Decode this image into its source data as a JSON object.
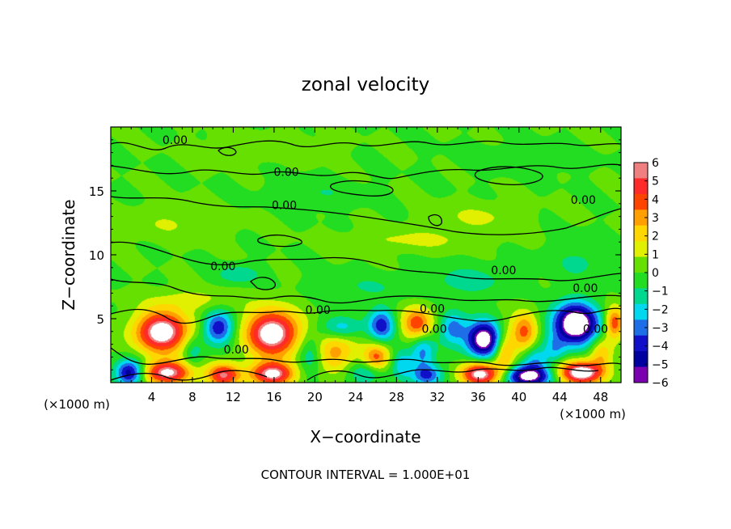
{
  "chart_data": {
    "type": "heatmap",
    "title": "zonal velocity",
    "xlabel": "X−coordinate",
    "ylabel": "Z−coordinate",
    "x_unit_left": "(×1000 m)",
    "x_unit_right": "(×1000 m)",
    "footer": "CONTOUR INTERVAL = 1.000E+01",
    "xlim": [
      0,
      50
    ],
    "ylim": [
      0,
      20
    ],
    "x_ticks": [
      4,
      8,
      12,
      16,
      20,
      24,
      28,
      32,
      36,
      40,
      44,
      48
    ],
    "x_tick_labels": [
      "4",
      "8",
      "12",
      "16",
      "20",
      "24",
      "28",
      "32",
      "36",
      "40",
      "44",
      "48"
    ],
    "y_ticks": [
      5,
      10,
      15
    ],
    "y_tick_labels": [
      "5",
      "10",
      "15"
    ],
    "contour_label": "0.00",
    "contour_label_positions": [
      {
        "x": 6.3,
        "y": 19.0
      },
      {
        "x": 17.2,
        "y": 16.5
      },
      {
        "x": 17.0,
        "y": 13.9
      },
      {
        "x": 46.3,
        "y": 14.3
      },
      {
        "x": 11.0,
        "y": 9.1
      },
      {
        "x": 38.5,
        "y": 8.8
      },
      {
        "x": 46.5,
        "y": 7.4
      },
      {
        "x": 20.3,
        "y": 5.7
      },
      {
        "x": 31.5,
        "y": 5.8
      },
      {
        "x": 31.7,
        "y": 4.2
      },
      {
        "x": 12.3,
        "y": 2.6
      },
      {
        "x": 47.5,
        "y": 4.2
      }
    ],
    "colorbar": {
      "ticks": [
        6,
        5,
        4,
        3,
        2,
        1,
        0,
        -1,
        -2,
        -3,
        -4,
        -5,
        -6
      ],
      "tick_labels": [
        "6",
        "5",
        "4",
        "3",
        "2",
        "1",
        "0",
        "−1",
        "−2",
        "−3",
        "−4",
        "−5",
        "−6"
      ],
      "colors": [
        "#f08080",
        "#ff2a2a",
        "#ff4400",
        "#ffa000",
        "#ffd700",
        "#e0f000",
        "#66e000",
        "#22dd22",
        "#00d890",
        "#00d8f0",
        "#1e6ee8",
        "#1010c8",
        "#0000a0",
        "#7a00b0"
      ]
    },
    "features": [
      {
        "x": 5.0,
        "y": 4.0,
        "value": 8,
        "sx": 2.6,
        "sy": 1.6
      },
      {
        "x": 5.5,
        "y": 0.8,
        "value": 7,
        "sx": 2.4,
        "sy": 0.9
      },
      {
        "x": 1.8,
        "y": 0.8,
        "value": -6,
        "sx": 1.4,
        "sy": 1.0
      },
      {
        "x": 10.5,
        "y": 4.3,
        "value": -5,
        "sx": 1.5,
        "sy": 1.3
      },
      {
        "x": 11.0,
        "y": 0.6,
        "value": 6,
        "sx": 1.6,
        "sy": 0.9
      },
      {
        "x": 15.8,
        "y": 3.9,
        "value": 8,
        "sx": 2.6,
        "sy": 1.8
      },
      {
        "x": 15.8,
        "y": 0.7,
        "value": 7,
        "sx": 2.2,
        "sy": 0.9
      },
      {
        "x": 19.5,
        "y": 2.2,
        "value": -2.5,
        "sx": 1.2,
        "sy": 1.5
      },
      {
        "x": 22.0,
        "y": 2.5,
        "value": 3.5,
        "sx": 2.0,
        "sy": 1.6
      },
      {
        "x": 22.5,
        "y": 4.3,
        "value": -3,
        "sx": 2.0,
        "sy": 0.9
      },
      {
        "x": 26.5,
        "y": 4.5,
        "value": -4.5,
        "sx": 1.3,
        "sy": 1.3
      },
      {
        "x": 26.0,
        "y": 2.0,
        "value": 4.5,
        "sx": 1.3,
        "sy": 1.1
      },
      {
        "x": 25.0,
        "y": 0.8,
        "value": -2.5,
        "sx": 1.8,
        "sy": 0.9
      },
      {
        "x": 28.5,
        "y": 1.5,
        "value": -2.5,
        "sx": 1.0,
        "sy": 1.2
      },
      {
        "x": 30.0,
        "y": 4.6,
        "value": 5,
        "sx": 1.5,
        "sy": 1.3
      },
      {
        "x": 30.5,
        "y": 2.5,
        "value": -3.5,
        "sx": 1.2,
        "sy": 1.5
      },
      {
        "x": 31.0,
        "y": 0.6,
        "value": -4,
        "sx": 1.5,
        "sy": 0.8
      },
      {
        "x": 33.5,
        "y": 4.3,
        "value": -3.5,
        "sx": 1.3,
        "sy": 1.3
      },
      {
        "x": 36.5,
        "y": 3.4,
        "value": -8,
        "sx": 1.7,
        "sy": 1.4
      },
      {
        "x": 36.2,
        "y": 0.7,
        "value": 7.5,
        "sx": 1.9,
        "sy": 0.9
      },
      {
        "x": 38.5,
        "y": 2.3,
        "value": 3.5,
        "sx": 1.0,
        "sy": 1.8
      },
      {
        "x": 40.5,
        "y": 4.0,
        "value": 4.5,
        "sx": 1.3,
        "sy": 1.5
      },
      {
        "x": 41.5,
        "y": 1.8,
        "value": -3,
        "sx": 1.3,
        "sy": 1.2
      },
      {
        "x": 40.8,
        "y": 0.5,
        "value": -7,
        "sx": 2.4,
        "sy": 0.8
      },
      {
        "x": 45.5,
        "y": 4.6,
        "value": -9,
        "sx": 2.2,
        "sy": 1.6
      },
      {
        "x": 46.0,
        "y": 0.8,
        "value": 8,
        "sx": 2.2,
        "sy": 0.9
      },
      {
        "x": 48.0,
        "y": 2.3,
        "value": 3,
        "sx": 1.1,
        "sy": 1.3
      },
      {
        "x": 49.3,
        "y": 4.7,
        "value": 5,
        "sx": 0.9,
        "sy": 1.2
      },
      {
        "x": 43.5,
        "y": 2.6,
        "value": -2,
        "sx": 1.0,
        "sy": 1.0
      },
      {
        "x": 8.0,
        "y": 2.5,
        "value": -2,
        "sx": 1.0,
        "sy": 1.2
      },
      {
        "x": 12.5,
        "y": 8.5,
        "value": -2,
        "sx": 2.0,
        "sy": 0.7
      },
      {
        "x": 35.0,
        "y": 8.0,
        "value": -1.5,
        "sx": 4.0,
        "sy": 1.2
      },
      {
        "x": 46.0,
        "y": 9.5,
        "value": -1.2,
        "sx": 3.0,
        "sy": 1.5
      },
      {
        "x": 25.0,
        "y": 7.5,
        "value": -1.0,
        "sx": 5.0,
        "sy": 1.0
      },
      {
        "x": 20.0,
        "y": 14.8,
        "value": -1.0,
        "sx": 4.0,
        "sy": 1.0
      },
      {
        "x": 36.0,
        "y": 13.0,
        "value": 1.2,
        "sx": 4.0,
        "sy": 1.0
      },
      {
        "x": 6.0,
        "y": 12.5,
        "value": 1.0,
        "sx": 5.0,
        "sy": 1.2
      },
      {
        "x": 30.0,
        "y": 11.2,
        "value": 1.3,
        "sx": 6.0,
        "sy": 0.8
      },
      {
        "x": 8.0,
        "y": 6.5,
        "value": 1.5,
        "sx": 4.0,
        "sy": 0.8
      },
      {
        "x": 40.0,
        "y": 17.5,
        "value": -0.8,
        "sx": 5.0,
        "sy": 1.0
      },
      {
        "x": 15.0,
        "y": 18.5,
        "value": 0.8,
        "sx": 5.0,
        "sy": 1.0
      }
    ]
  }
}
